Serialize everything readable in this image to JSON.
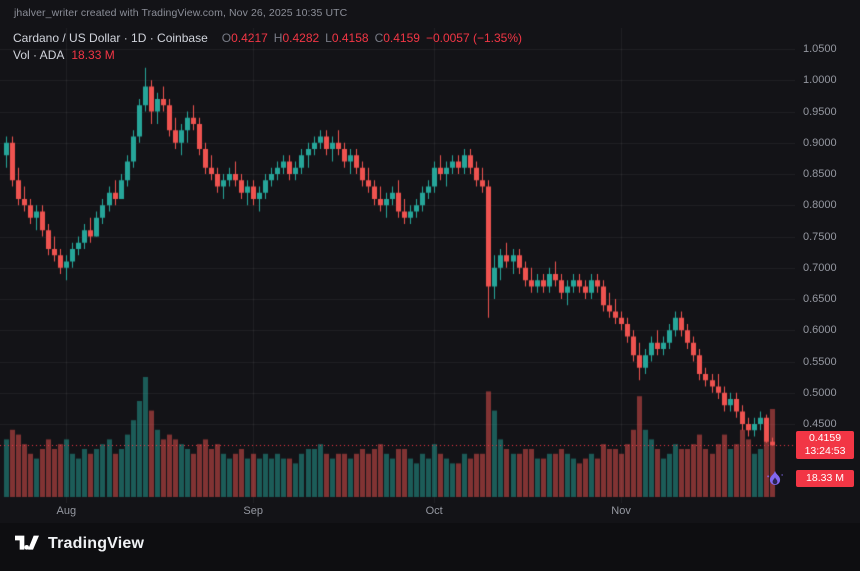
{
  "page": {
    "attribution": "jhalver_writer created with TradingView.com, Nov 26, 2025 10:35 UTC",
    "brand": "TradingView"
  },
  "legend": {
    "title": "Cardano / US Dollar · 1D · Coinbase",
    "ohlc": [
      {
        "label": "O",
        "value": "0.4217"
      },
      {
        "label": "H",
        "value": "0.4282"
      },
      {
        "label": "L",
        "value": "0.4158"
      },
      {
        "label": "C",
        "value": "0.4159"
      }
    ],
    "change": "−0.0057 (−1.35%)",
    "volume_label": "Vol · ADA",
    "volume_value": "18.33 M"
  },
  "badges": {
    "price": "0.4159",
    "countdown": "13:24:53",
    "volume": "18.33 M"
  },
  "colors": {
    "up": "#26a69a",
    "down": "#ef5350",
    "last_price": "#f23645",
    "grid": "rgba(255,255,255,0.06)",
    "background": "#131317",
    "text_muted": "#9598a1",
    "text_bright": "#d1d4dc"
  },
  "chart_data": {
    "type": "candlestick+volume",
    "title": "Cardano / US Dollar",
    "exchange": "Coinbase",
    "interval": "1D",
    "ylim": [
      0.4,
      1.07
    ],
    "volume_unit": "M",
    "price_ticks": [
      {
        "value": 1.05,
        "label": "1.0500"
      },
      {
        "value": 1.0,
        "label": "1.0000"
      },
      {
        "value": 0.95,
        "label": "0.9500"
      },
      {
        "value": 0.9,
        "label": "0.9000"
      },
      {
        "value": 0.85,
        "label": "0.8500"
      },
      {
        "value": 0.8,
        "label": "0.8000"
      },
      {
        "value": 0.75,
        "label": "0.7500"
      },
      {
        "value": 0.7,
        "label": "0.7000"
      },
      {
        "value": 0.65,
        "label": "0.6500"
      },
      {
        "value": 0.6,
        "label": "0.6000"
      },
      {
        "value": 0.55,
        "label": "0.5500"
      },
      {
        "value": 0.5,
        "label": "0.5000"
      },
      {
        "value": 0.45,
        "label": "0.4500"
      }
    ],
    "x_ticks": [
      {
        "label": "Aug",
        "date": "2025-08-01"
      },
      {
        "label": "Sep",
        "date": "2025-09-01"
      },
      {
        "label": "Oct",
        "date": "2025-10-01"
      },
      {
        "label": "Nov",
        "date": "2025-11-01"
      }
    ],
    "last": {
      "o": 0.4217,
      "h": 0.4282,
      "l": 0.4158,
      "c": 0.4159,
      "change": "−0.0057",
      "change_pct": "−1.35%",
      "volume": "18.33 M"
    },
    "candles": [
      [
        "2025-07-22",
        0.88,
        0.91,
        0.86,
        0.9,
        12
      ],
      [
        "2025-07-23",
        0.9,
        0.91,
        0.83,
        0.84,
        14
      ],
      [
        "2025-07-24",
        0.84,
        0.86,
        0.8,
        0.81,
        13
      ],
      [
        "2025-07-25",
        0.81,
        0.83,
        0.79,
        0.8,
        11
      ],
      [
        "2025-07-26",
        0.8,
        0.81,
        0.77,
        0.78,
        9
      ],
      [
        "2025-07-27",
        0.78,
        0.8,
        0.76,
        0.79,
        8
      ],
      [
        "2025-07-28",
        0.79,
        0.8,
        0.75,
        0.76,
        10
      ],
      [
        "2025-07-29",
        0.76,
        0.77,
        0.72,
        0.73,
        12
      ],
      [
        "2025-07-30",
        0.73,
        0.75,
        0.71,
        0.72,
        10
      ],
      [
        "2025-07-31",
        0.72,
        0.73,
        0.69,
        0.7,
        11
      ],
      [
        "2025-08-01",
        0.7,
        0.72,
        0.68,
        0.71,
        12
      ],
      [
        "2025-08-02",
        0.71,
        0.74,
        0.7,
        0.73,
        9
      ],
      [
        "2025-08-03",
        0.73,
        0.75,
        0.72,
        0.74,
        8
      ],
      [
        "2025-08-04",
        0.74,
        0.77,
        0.73,
        0.76,
        10
      ],
      [
        "2025-08-05",
        0.76,
        0.78,
        0.74,
        0.75,
        9
      ],
      [
        "2025-08-06",
        0.75,
        0.79,
        0.75,
        0.78,
        10
      ],
      [
        "2025-08-07",
        0.78,
        0.81,
        0.77,
        0.8,
        11
      ],
      [
        "2025-08-08",
        0.8,
        0.83,
        0.79,
        0.82,
        12
      ],
      [
        "2025-08-09",
        0.82,
        0.84,
        0.8,
        0.81,
        9
      ],
      [
        "2025-08-10",
        0.81,
        0.85,
        0.81,
        0.84,
        10
      ],
      [
        "2025-08-11",
        0.84,
        0.88,
        0.83,
        0.87,
        13
      ],
      [
        "2025-08-12",
        0.87,
        0.92,
        0.86,
        0.91,
        16
      ],
      [
        "2025-08-13",
        0.91,
        0.97,
        0.9,
        0.96,
        20
      ],
      [
        "2025-08-14",
        0.96,
        1.02,
        0.95,
        0.99,
        25
      ],
      [
        "2025-08-15",
        0.99,
        1.0,
        0.93,
        0.95,
        18
      ],
      [
        "2025-08-16",
        0.95,
        0.98,
        0.93,
        0.97,
        14
      ],
      [
        "2025-08-17",
        0.97,
        0.99,
        0.95,
        0.96,
        12
      ],
      [
        "2025-08-18",
        0.96,
        0.97,
        0.91,
        0.92,
        13
      ],
      [
        "2025-08-19",
        0.92,
        0.94,
        0.89,
        0.9,
        12
      ],
      [
        "2025-08-20",
        0.9,
        0.93,
        0.88,
        0.92,
        11
      ],
      [
        "2025-08-21",
        0.92,
        0.95,
        0.9,
        0.94,
        10
      ],
      [
        "2025-08-22",
        0.94,
        0.96,
        0.92,
        0.93,
        9
      ],
      [
        "2025-08-23",
        0.93,
        0.94,
        0.88,
        0.89,
        11
      ],
      [
        "2025-08-24",
        0.89,
        0.9,
        0.85,
        0.86,
        12
      ],
      [
        "2025-08-25",
        0.86,
        0.88,
        0.84,
        0.85,
        10
      ],
      [
        "2025-08-26",
        0.85,
        0.86,
        0.82,
        0.83,
        11
      ],
      [
        "2025-08-27",
        0.83,
        0.85,
        0.81,
        0.84,
        9
      ],
      [
        "2025-08-28",
        0.84,
        0.86,
        0.83,
        0.85,
        8
      ],
      [
        "2025-08-29",
        0.85,
        0.87,
        0.83,
        0.84,
        9
      ],
      [
        "2025-08-30",
        0.84,
        0.85,
        0.81,
        0.82,
        10
      ],
      [
        "2025-08-31",
        0.82,
        0.84,
        0.8,
        0.83,
        8
      ],
      [
        "2025-09-01",
        0.83,
        0.84,
        0.8,
        0.81,
        9
      ],
      [
        "2025-09-02",
        0.81,
        0.83,
        0.79,
        0.82,
        8
      ],
      [
        "2025-09-03",
        0.82,
        0.85,
        0.81,
        0.84,
        9
      ],
      [
        "2025-09-04",
        0.84,
        0.86,
        0.83,
        0.85,
        8
      ],
      [
        "2025-09-05",
        0.85,
        0.87,
        0.84,
        0.86,
        9
      ],
      [
        "2025-09-06",
        0.86,
        0.88,
        0.85,
        0.87,
        8
      ],
      [
        "2025-09-07",
        0.87,
        0.88,
        0.84,
        0.85,
        8
      ],
      [
        "2025-09-08",
        0.85,
        0.87,
        0.84,
        0.86,
        7
      ],
      [
        "2025-09-09",
        0.86,
        0.89,
        0.85,
        0.88,
        9
      ],
      [
        "2025-09-10",
        0.88,
        0.9,
        0.86,
        0.89,
        10
      ],
      [
        "2025-09-11",
        0.89,
        0.91,
        0.88,
        0.9,
        10
      ],
      [
        "2025-09-12",
        0.9,
        0.92,
        0.89,
        0.91,
        11
      ],
      [
        "2025-09-13",
        0.91,
        0.92,
        0.88,
        0.89,
        9
      ],
      [
        "2025-09-14",
        0.89,
        0.91,
        0.87,
        0.9,
        8
      ],
      [
        "2025-09-15",
        0.9,
        0.92,
        0.88,
        0.89,
        9
      ],
      [
        "2025-09-16",
        0.89,
        0.9,
        0.86,
        0.87,
        9
      ],
      [
        "2025-09-17",
        0.87,
        0.89,
        0.85,
        0.88,
        8
      ],
      [
        "2025-09-18",
        0.88,
        0.89,
        0.85,
        0.86,
        9
      ],
      [
        "2025-09-19",
        0.86,
        0.87,
        0.83,
        0.84,
        10
      ],
      [
        "2025-09-20",
        0.84,
        0.86,
        0.82,
        0.83,
        9
      ],
      [
        "2025-09-21",
        0.83,
        0.84,
        0.8,
        0.81,
        10
      ],
      [
        "2025-09-22",
        0.81,
        0.83,
        0.79,
        0.8,
        11
      ],
      [
        "2025-09-23",
        0.8,
        0.82,
        0.78,
        0.81,
        9
      ],
      [
        "2025-09-24",
        0.81,
        0.83,
        0.8,
        0.82,
        8
      ],
      [
        "2025-09-25",
        0.82,
        0.84,
        0.78,
        0.79,
        10
      ],
      [
        "2025-09-26",
        0.79,
        0.81,
        0.77,
        0.78,
        10
      ],
      [
        "2025-09-27",
        0.78,
        0.8,
        0.77,
        0.79,
        8
      ],
      [
        "2025-09-28",
        0.79,
        0.81,
        0.78,
        0.8,
        7
      ],
      [
        "2025-09-29",
        0.8,
        0.83,
        0.79,
        0.82,
        9
      ],
      [
        "2025-09-30",
        0.82,
        0.84,
        0.81,
        0.83,
        8
      ],
      [
        "2025-10-01",
        0.83,
        0.87,
        0.82,
        0.86,
        11
      ],
      [
        "2025-10-02",
        0.86,
        0.88,
        0.84,
        0.85,
        9
      ],
      [
        "2025-10-03",
        0.85,
        0.87,
        0.83,
        0.86,
        8
      ],
      [
        "2025-10-04",
        0.86,
        0.88,
        0.85,
        0.87,
        7
      ],
      [
        "2025-10-05",
        0.87,
        0.88,
        0.85,
        0.86,
        7
      ],
      [
        "2025-10-06",
        0.86,
        0.89,
        0.85,
        0.88,
        9
      ],
      [
        "2025-10-07",
        0.88,
        0.89,
        0.85,
        0.86,
        8
      ],
      [
        "2025-10-08",
        0.86,
        0.87,
        0.83,
        0.84,
        9
      ],
      [
        "2025-10-09",
        0.84,
        0.86,
        0.82,
        0.83,
        9
      ],
      [
        "2025-10-10",
        0.83,
        0.84,
        0.62,
        0.67,
        22
      ],
      [
        "2025-10-11",
        0.67,
        0.72,
        0.65,
        0.7,
        18
      ],
      [
        "2025-10-12",
        0.7,
        0.73,
        0.68,
        0.72,
        12
      ],
      [
        "2025-10-13",
        0.72,
        0.74,
        0.7,
        0.71,
        10
      ],
      [
        "2025-10-14",
        0.71,
        0.73,
        0.69,
        0.72,
        9
      ],
      [
        "2025-10-15",
        0.72,
        0.73,
        0.69,
        0.7,
        9
      ],
      [
        "2025-10-16",
        0.7,
        0.71,
        0.67,
        0.68,
        10
      ],
      [
        "2025-10-17",
        0.68,
        0.7,
        0.66,
        0.67,
        10
      ],
      [
        "2025-10-18",
        0.67,
        0.69,
        0.66,
        0.68,
        8
      ],
      [
        "2025-10-19",
        0.68,
        0.69,
        0.66,
        0.67,
        8
      ],
      [
        "2025-10-20",
        0.67,
        0.7,
        0.66,
        0.69,
        9
      ],
      [
        "2025-10-21",
        0.69,
        0.71,
        0.67,
        0.68,
        9
      ],
      [
        "2025-10-22",
        0.68,
        0.69,
        0.65,
        0.66,
        10
      ],
      [
        "2025-10-23",
        0.66,
        0.68,
        0.64,
        0.67,
        9
      ],
      [
        "2025-10-24",
        0.67,
        0.69,
        0.66,
        0.68,
        8
      ],
      [
        "2025-10-25",
        0.68,
        0.69,
        0.66,
        0.67,
        7
      ],
      [
        "2025-10-26",
        0.67,
        0.68,
        0.65,
        0.66,
        8
      ],
      [
        "2025-10-27",
        0.66,
        0.69,
        0.65,
        0.68,
        9
      ],
      [
        "2025-10-28",
        0.68,
        0.69,
        0.66,
        0.67,
        8
      ],
      [
        "2025-10-29",
        0.67,
        0.68,
        0.63,
        0.64,
        11
      ],
      [
        "2025-10-30",
        0.64,
        0.66,
        0.62,
        0.63,
        10
      ],
      [
        "2025-10-31",
        0.63,
        0.65,
        0.61,
        0.62,
        10
      ],
      [
        "2025-11-01",
        0.62,
        0.63,
        0.6,
        0.61,
        9
      ],
      [
        "2025-11-02",
        0.61,
        0.62,
        0.58,
        0.59,
        11
      ],
      [
        "2025-11-03",
        0.59,
        0.6,
        0.55,
        0.56,
        14
      ],
      [
        "2025-11-04",
        0.56,
        0.58,
        0.52,
        0.54,
        21
      ],
      [
        "2025-11-05",
        0.54,
        0.57,
        0.53,
        0.56,
        14
      ],
      [
        "2025-11-06",
        0.56,
        0.59,
        0.55,
        0.58,
        12
      ],
      [
        "2025-11-07",
        0.58,
        0.6,
        0.56,
        0.57,
        10
      ],
      [
        "2025-11-08",
        0.57,
        0.59,
        0.56,
        0.58,
        8
      ],
      [
        "2025-11-09",
        0.58,
        0.61,
        0.57,
        0.6,
        9
      ],
      [
        "2025-11-10",
        0.6,
        0.63,
        0.59,
        0.62,
        11
      ],
      [
        "2025-11-11",
        0.62,
        0.63,
        0.59,
        0.6,
        10
      ],
      [
        "2025-11-12",
        0.6,
        0.61,
        0.57,
        0.58,
        10
      ],
      [
        "2025-11-13",
        0.58,
        0.59,
        0.55,
        0.56,
        11
      ],
      [
        "2025-11-14",
        0.56,
        0.57,
        0.52,
        0.53,
        13
      ],
      [
        "2025-11-15",
        0.53,
        0.54,
        0.51,
        0.52,
        10
      ],
      [
        "2025-11-16",
        0.52,
        0.53,
        0.5,
        0.51,
        9
      ],
      [
        "2025-11-17",
        0.51,
        0.53,
        0.49,
        0.5,
        11
      ],
      [
        "2025-11-18",
        0.5,
        0.51,
        0.47,
        0.48,
        13
      ],
      [
        "2025-11-19",
        0.48,
        0.5,
        0.47,
        0.49,
        10
      ],
      [
        "2025-11-20",
        0.49,
        0.5,
        0.46,
        0.47,
        11
      ],
      [
        "2025-11-21",
        0.47,
        0.48,
        0.44,
        0.45,
        14
      ],
      [
        "2025-11-22",
        0.45,
        0.46,
        0.43,
        0.44,
        12
      ],
      [
        "2025-11-23",
        0.44,
        0.46,
        0.43,
        0.45,
        9
      ],
      [
        "2025-11-24",
        0.45,
        0.47,
        0.44,
        0.46,
        10
      ],
      [
        "2025-11-25",
        0.46,
        0.465,
        0.42,
        0.4217,
        12
      ],
      [
        "2025-11-26",
        0.4217,
        0.4282,
        0.4158,
        0.4159,
        18.33
      ]
    ]
  }
}
